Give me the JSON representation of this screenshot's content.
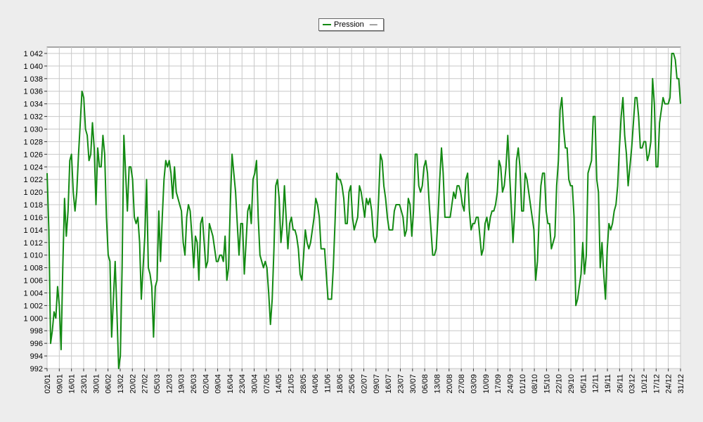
{
  "colors": {
    "series": "#138a13",
    "grid": "#c8c8c8",
    "plot_bg": "#ffffff",
    "page_bg": "#ededed"
  },
  "legend": {
    "label": "Pression",
    "dash": "—"
  },
  "chart_data": {
    "type": "line",
    "title": "",
    "xlabel": "",
    "ylabel": "",
    "ylim": [
      992,
      1043
    ],
    "y_ticks": [
      "1 042",
      "1 040",
      "1 038",
      "1 036",
      "1 034",
      "1 032",
      "1 030",
      "1 028",
      "1 026",
      "1 024",
      "1 022",
      "1 020",
      "1 018",
      "1 016",
      "1 014",
      "1 012",
      "1 010",
      "1 008",
      "1 006",
      "1 004",
      "1 002",
      "1 000",
      "998",
      "996",
      "994",
      "992"
    ],
    "x_ticks": [
      "02/01",
      "09/01",
      "16/01",
      "23/01",
      "30/01",
      "06/02",
      "13/02",
      "20/02",
      "27/02",
      "05/03",
      "12/03",
      "19/03",
      "26/03",
      "02/04",
      "09/04",
      "16/04",
      "23/04",
      "30/04",
      "07/05",
      "14/05",
      "21/05",
      "28/05",
      "04/06",
      "11/06",
      "18/06",
      "25/06",
      "02/07",
      "09/07",
      "16/07",
      "23/07",
      "30/07",
      "06/08",
      "13/08",
      "20/08",
      "27/08",
      "03/09",
      "10/09",
      "17/09",
      "24/09",
      "01/10",
      "08/10",
      "15/10",
      "22/10",
      "29/10",
      "05/11",
      "12/11",
      "19/11",
      "26/11",
      "03/12",
      "10/12",
      "17/12",
      "24/12",
      "31/12"
    ],
    "grid": true,
    "legend_position": "top-center",
    "series": [
      {
        "name": "Pression",
        "values": [
          1023,
          1014,
          996,
          998,
          1001,
          1000,
          1005,
          1002,
          995,
          1008,
          1019,
          1013,
          1017,
          1025,
          1026,
          1020,
          1017,
          1020,
          1026,
          1031,
          1036,
          1035,
          1030,
          1029,
          1025,
          1026,
          1031,
          1027,
          1018,
          1027,
          1024,
          1024,
          1029,
          1026,
          1016,
          1010,
          1009,
          997,
          1003,
          1009,
          1001,
          992,
          994,
          1008,
          1029,
          1023,
          1017,
          1024,
          1024,
          1022,
          1016,
          1015,
          1016,
          1012,
          1003,
          1008,
          1013,
          1022,
          1008,
          1007,
          1005,
          997,
          1005,
          1006,
          1017,
          1009,
          1016,
          1022,
          1025,
          1024,
          1025,
          1023,
          1019,
          1024,
          1020,
          1019,
          1018,
          1017,
          1012,
          1010,
          1016,
          1018,
          1017,
          1013,
          1008,
          1013,
          1012,
          1006,
          1015,
          1016,
          1012,
          1008,
          1009,
          1015,
          1014,
          1013,
          1011,
          1009,
          1009,
          1010,
          1010,
          1009,
          1013,
          1006,
          1008,
          1018,
          1026,
          1023,
          1020,
          1015,
          1010,
          1015,
          1015,
          1007,
          1012,
          1017,
          1018,
          1015,
          1022,
          1023,
          1025,
          1016,
          1010,
          1009,
          1008,
          1009,
          1008,
          1004,
          999,
          1003,
          1011,
          1021,
          1022,
          1019,
          1012,
          1015,
          1021,
          1016,
          1011,
          1015,
          1016,
          1014,
          1014,
          1013,
          1011,
          1007,
          1006,
          1010,
          1014,
          1012,
          1011,
          1012,
          1014,
          1016,
          1019,
          1018,
          1016,
          1011,
          1011,
          1011,
          1007,
          1003,
          1003,
          1003,
          1008,
          1015,
          1023,
          1022,
          1022,
          1021,
          1019,
          1015,
          1015,
          1020,
          1021,
          1016,
          1014,
          1015,
          1016,
          1021,
          1020,
          1018,
          1016,
          1019,
          1018,
          1019,
          1017,
          1013,
          1012,
          1013,
          1019,
          1026,
          1025,
          1021,
          1019,
          1016,
          1014,
          1014,
          1014,
          1017,
          1018,
          1018,
          1018,
          1017,
          1016,
          1013,
          1014,
          1019,
          1018,
          1013,
          1017,
          1026,
          1026,
          1021,
          1020,
          1021,
          1024,
          1025,
          1023,
          1018,
          1014,
          1010,
          1010,
          1011,
          1016,
          1022,
          1027,
          1023,
          1016,
          1016,
          1016,
          1016,
          1018,
          1020,
          1019,
          1021,
          1021,
          1020,
          1018,
          1017,
          1022,
          1023,
          1017,
          1014,
          1015,
          1015,
          1016,
          1016,
          1013,
          1010,
          1011,
          1015,
          1016,
          1014,
          1016,
          1017,
          1017,
          1018,
          1020,
          1025,
          1024,
          1020,
          1021,
          1024,
          1029,
          1023,
          1018,
          1012,
          1017,
          1025,
          1027,
          1024,
          1017,
          1017,
          1023,
          1022,
          1020,
          1018,
          1016,
          1014,
          1006,
          1009,
          1016,
          1021,
          1023,
          1023,
          1017,
          1015,
          1015,
          1011,
          1012,
          1013,
          1021,
          1025,
          1033,
          1035,
          1030,
          1027,
          1027,
          1022,
          1021,
          1021,
          1016,
          1002,
          1003,
          1005,
          1007,
          1012,
          1007,
          1010,
          1023,
          1024,
          1025,
          1032,
          1032,
          1022,
          1020,
          1008,
          1012,
          1007,
          1003,
          1011,
          1015,
          1014,
          1015,
          1017,
          1018,
          1021,
          1027,
          1032,
          1035,
          1029,
          1026,
          1021,
          1024,
          1027,
          1031,
          1035,
          1035,
          1032,
          1027,
          1027,
          1028,
          1028,
          1025,
          1026,
          1028,
          1038,
          1034,
          1024,
          1024,
          1031,
          1033,
          1035,
          1034,
          1034,
          1034,
          1035,
          1042,
          1042,
          1041,
          1038,
          1038,
          1034
        ]
      }
    ]
  }
}
